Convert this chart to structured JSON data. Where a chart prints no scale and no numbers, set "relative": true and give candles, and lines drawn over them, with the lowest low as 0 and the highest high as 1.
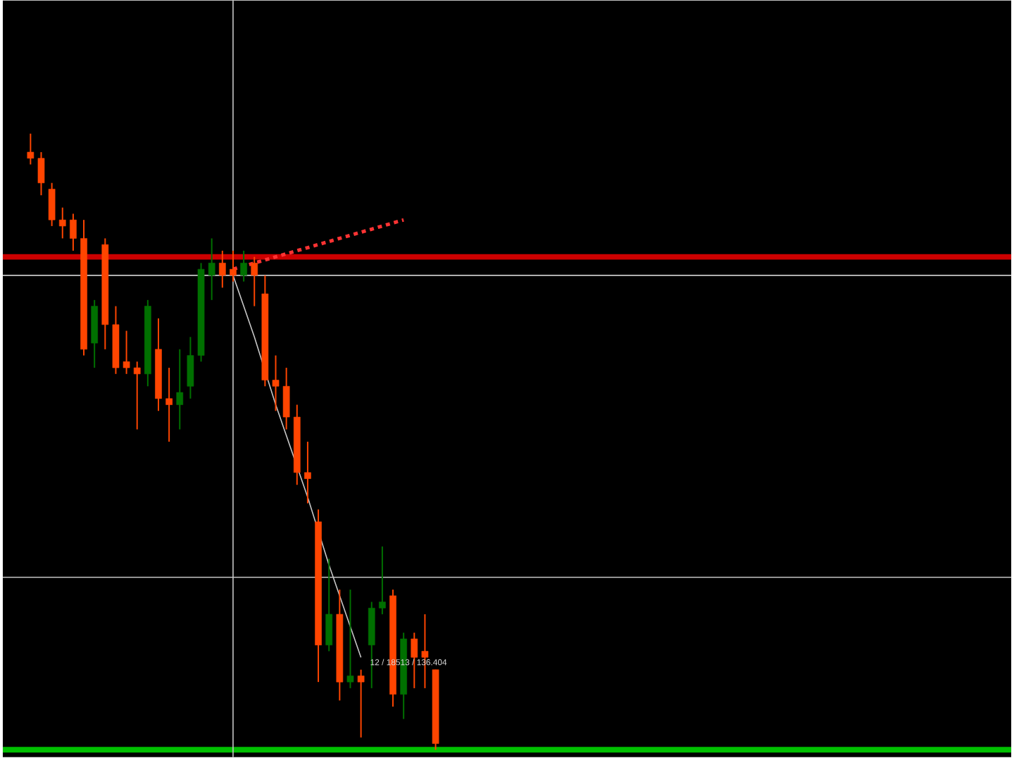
{
  "chart_data": {
    "type": "candlestick",
    "relative": true,
    "categories": [
      null,
      null,
      null,
      null,
      null,
      null,
      null,
      null,
      null,
      null,
      null,
      null,
      null,
      null,
      null,
      null,
      null,
      null,
      null,
      null,
      null,
      null,
      null,
      null,
      null,
      null,
      null,
      null,
      null,
      null,
      null,
      null,
      null,
      null,
      null,
      null,
      null,
      null,
      null
    ],
    "ohlc": [
      [
        0.97,
        1,
        0.95,
        0.96
      ],
      [
        0.96,
        0.97,
        0.9,
        0.92
      ],
      [
        0.91,
        0.92,
        0.85,
        0.86
      ],
      [
        0.86,
        0.88,
        0.83,
        0.85
      ],
      [
        0.86,
        0.87,
        0.81,
        0.83
      ],
      [
        0.83,
        0.86,
        0.64,
        0.65
      ],
      [
        0.66,
        0.73,
        0.62,
        0.72
      ],
      [
        0.82,
        0.83,
        0.65,
        0.69
      ],
      [
        0.69,
        0.72,
        0.61,
        0.62
      ],
      [
        0.63,
        0.68,
        0.61,
        0.62
      ],
      [
        0.62,
        0.63,
        0.52,
        0.61
      ],
      [
        0.61,
        0.73,
        0.59,
        0.72
      ],
      [
        0.65,
        0.7,
        0.55,
        0.57
      ],
      [
        0.57,
        0.62,
        0.5,
        0.56
      ],
      [
        0.56,
        0.65,
        0.52,
        0.58
      ],
      [
        0.59,
        0.67,
        0.57,
        0.64
      ],
      [
        0.64,
        0.79,
        0.63,
        0.78
      ],
      [
        0.77,
        0.83,
        0.73,
        0.79
      ],
      [
        0.79,
        0.81,
        0.75,
        0.77
      ],
      [
        0.78,
        0.81,
        0.76,
        0.77
      ],
      [
        0.77,
        0.81,
        0.76,
        0.79
      ],
      [
        0.79,
        0.8,
        0.72,
        0.77
      ],
      [
        0.74,
        0.77,
        0.59,
        0.6
      ],
      [
        0.6,
        0.64,
        0.55,
        0.59
      ],
      [
        0.59,
        0.62,
        0.52,
        0.54
      ],
      [
        0.54,
        0.56,
        0.43,
        0.45
      ],
      [
        0.45,
        0.5,
        0.4,
        0.44
      ],
      [
        0.37,
        0.39,
        0.11,
        0.17
      ],
      [
        0.17,
        0.31,
        0.16,
        0.22
      ],
      [
        0.22,
        0.26,
        0.08,
        0.11
      ],
      [
        0.11,
        0.26,
        0.1,
        0.12
      ],
      [
        0.12,
        0.13,
        0.02,
        0.11
      ],
      [
        0.17,
        0.24,
        0.1,
        0.23
      ],
      [
        0.23,
        0.33,
        0.22,
        0.24
      ],
      [
        0.25,
        0.26,
        0.07,
        0.09
      ],
      [
        0.09,
        0.19,
        0.05,
        0.18
      ],
      [
        0.18,
        0.19,
        0.1,
        0.15
      ],
      [
        0.16,
        0.22,
        0.1,
        0.15
      ],
      [
        0.13,
        0.13,
        0,
        0.01
      ]
    ],
    "colors": [
      "#ff4500",
      "#ff4500",
      "#ff4500",
      "#ff4500",
      "#ff4500",
      "#ff4500",
      "#007000",
      "#ff4500",
      "#ff4500",
      "#ff4500",
      "#ff4500",
      "#007000",
      "#ff4500",
      "#ff4500",
      "#007000",
      "#007000",
      "#007000",
      "#007000",
      "#ff4500",
      "#ff4500",
      "#007000",
      "#ff4500",
      "#ff4500",
      "#ff4500",
      "#ff4500",
      "#ff4500",
      "#ff4500",
      "#ff4500",
      "#007000",
      "#ff4500",
      "#007000",
      "#ff4500",
      "#007000",
      "#007000",
      "#ff4500",
      "#007000",
      "#ff4500",
      "#ff4500",
      "#ff4500"
    ],
    "series": [
      {
        "type": "line",
        "values": [
          null,
          null,
          null,
          null,
          null,
          null,
          null,
          null,
          null,
          null,
          null,
          null,
          null,
          null,
          null,
          null,
          null,
          null,
          null,
          0.78,
          0.785,
          0.79,
          0.795,
          0.8,
          0.805,
          0.81,
          0.815,
          0.82,
          0.825,
          0.83,
          0.835,
          0.84,
          0.845,
          0.85,
          0.855,
          0.86,
          null,
          null,
          null
        ],
        "color": "#ff3333",
        "line_style": "dotted"
      },
      {
        "type": "line",
        "values": [
          null,
          null,
          null,
          null,
          null,
          null,
          null,
          null,
          null,
          null,
          null,
          null,
          null,
          null,
          null,
          null,
          null,
          null,
          null,
          0.77,
          0.72,
          0.67,
          null,
          0.56,
          0.51,
          null,
          0.41,
          null,
          0.3,
          0.25,
          0.2,
          0.15,
          null,
          null,
          null,
          null,
          null,
          null,
          null
        ],
        "color": "#c8c8c8",
        "line_style": "solid"
      }
    ],
    "ref_lines": [
      {
        "axis": "y",
        "value": 0.8,
        "color": "#cc0000"
      },
      {
        "axis": "y",
        "value": 0.77,
        "color": "#c8c8c8"
      },
      {
        "axis": "y",
        "value": 0.28,
        "color": "#c8c8c8"
      },
      {
        "axis": "y",
        "value": 0,
        "color": "#00c000"
      }
    ],
    "annotations": [
      {
        "text": "12 / 18513 / 136.404",
        "y": 0.15
      }
    ]
  }
}
